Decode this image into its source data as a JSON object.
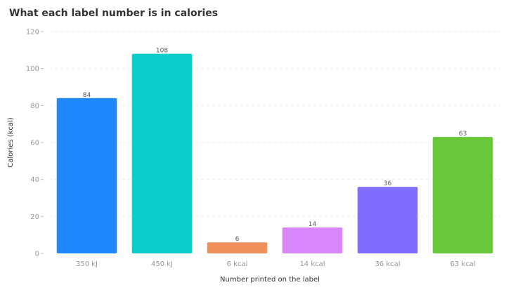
{
  "chart_data": {
    "type": "bar",
    "title": "What each label number is in calories",
    "xlabel": "Number printed on the label",
    "ylabel": "Calories (kcal)",
    "categories": [
      "350 kJ",
      "450 kJ",
      "6 kcal",
      "14 kcal",
      "36 kcal",
      "63 kcal"
    ],
    "values": [
      84,
      108,
      6,
      14,
      36,
      63
    ],
    "colors": [
      "#1f88ff",
      "#0bcdc9",
      "#f0905a",
      "#d986fb",
      "#7f6dff",
      "#69c83a"
    ],
    "ylim": [
      0,
      120
    ],
    "yticks": [
      0,
      20,
      40,
      60,
      80,
      100,
      120
    ],
    "grid": true,
    "legend": "none",
    "data_labels": true
  }
}
